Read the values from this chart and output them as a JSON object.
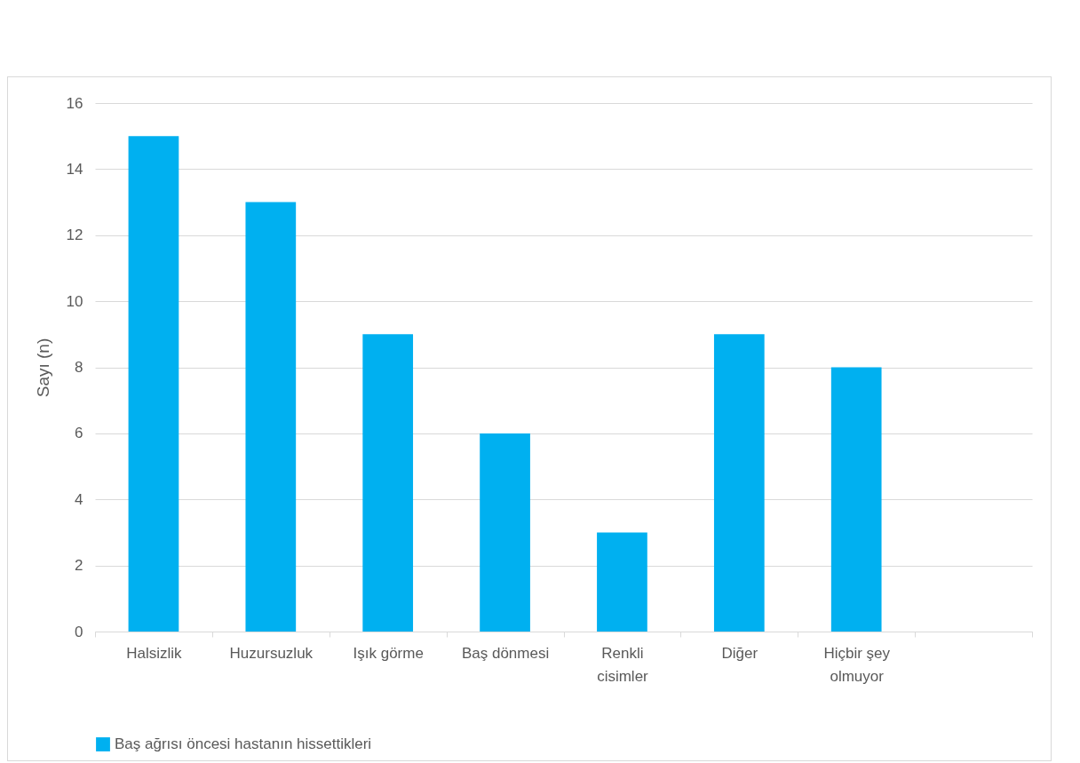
{
  "chart_data": {
    "type": "bar",
    "ylabel": "Sayı (n)",
    "categories": [
      "Halsizlik",
      "Huzursuzluk",
      "Işık görme",
      "Baş dönmesi",
      "Renkli cisimler",
      "Diğer",
      "Hiçbir şey olmuyor",
      null
    ],
    "series": [
      {
        "name": "Baş ağrısı öncesi hastanın hissettikleri",
        "color": "#00b0f0",
        "values": [
          15,
          13,
          9,
          6,
          3,
          9,
          8,
          null
        ]
      }
    ],
    "ylim": [
      0,
      16
    ],
    "yticks": [
      0,
      2,
      4,
      6,
      8,
      10,
      12,
      14,
      16
    ],
    "grid": "y",
    "legend": "bottom"
  }
}
